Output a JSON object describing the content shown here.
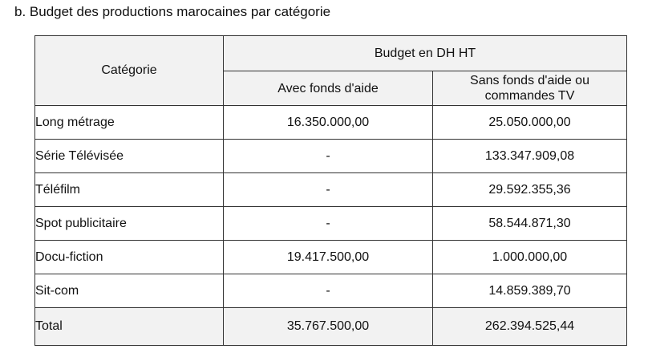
{
  "heading": "b. Budget des productions marocaines par catégorie",
  "table": {
    "header": {
      "category": "Catégorie",
      "budget": "Budget en DH HT",
      "with_aid": "Avec fonds d'aide",
      "without_aid_line1": "Sans fonds d'aide ou",
      "without_aid_line2": "commandes TV"
    },
    "rows": [
      {
        "category": "Long métrage",
        "with_aid": "16.350.000,00",
        "without_aid": "25.050.000,00"
      },
      {
        "category": "Série Télévisée",
        "with_aid": "-",
        "without_aid": "133.347.909,08"
      },
      {
        "category": "Téléfilm",
        "with_aid": "-",
        "without_aid": "29.592.355,36"
      },
      {
        "category": "Spot publicitaire",
        "with_aid": "-",
        "without_aid": "58.544.871,30"
      },
      {
        "category": "Docu-fiction",
        "with_aid": "19.417.500,00",
        "without_aid": "1.000.000,00"
      },
      {
        "category": "Sit-com",
        "with_aid": "-",
        "without_aid": "14.859.389,70"
      }
    ],
    "total": {
      "category": "Total",
      "with_aid": "35.767.500,00",
      "without_aid": "262.394.525,44"
    }
  }
}
